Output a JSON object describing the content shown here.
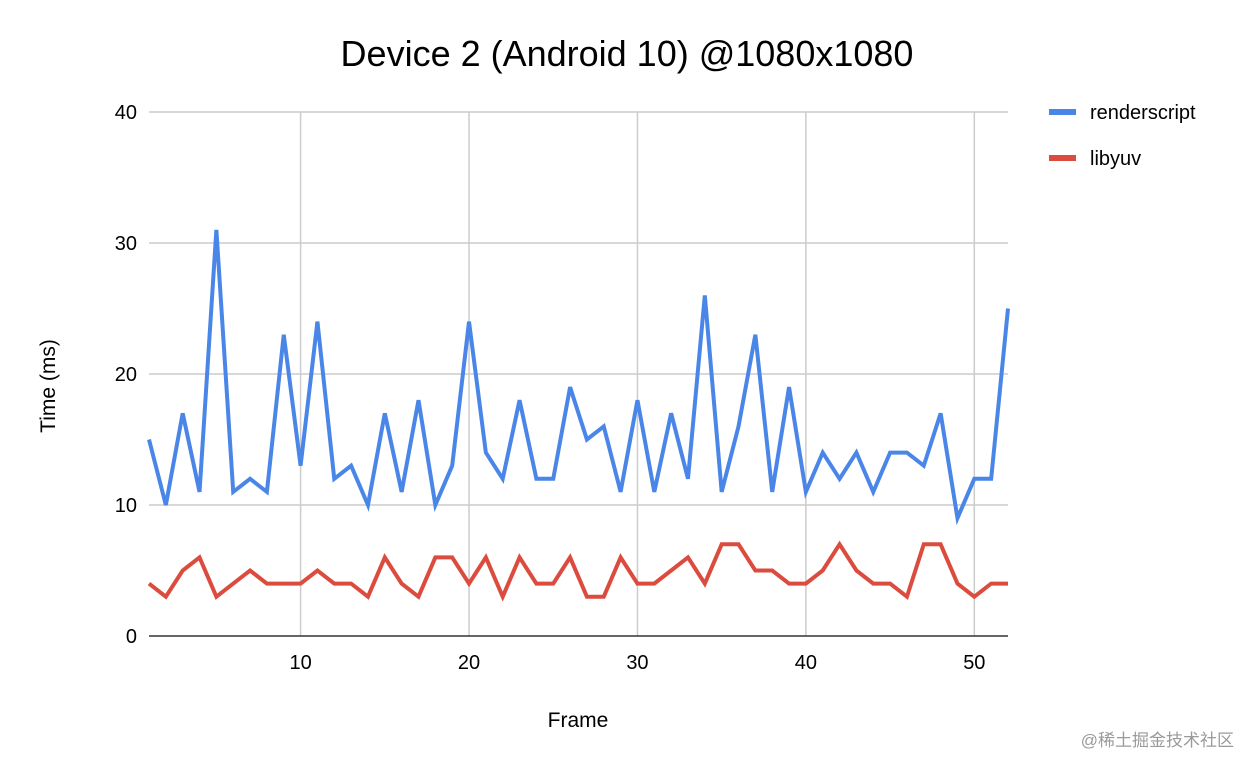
{
  "chart_data": {
    "type": "line",
    "title": "Device 2 (Android 10) @1080x1080",
    "xlabel": "Frame",
    "ylabel": "Time (ms)",
    "xlim": [
      1,
      52
    ],
    "ylim": [
      0,
      40
    ],
    "x_ticks": [
      10,
      20,
      30,
      40,
      50
    ],
    "y_ticks": [
      0,
      10,
      20,
      30,
      40
    ],
    "grid": true,
    "legend_position": "right",
    "x": [
      1,
      2,
      3,
      4,
      5,
      6,
      7,
      8,
      9,
      10,
      11,
      12,
      13,
      14,
      15,
      16,
      17,
      18,
      19,
      20,
      21,
      22,
      23,
      24,
      25,
      26,
      27,
      28,
      29,
      30,
      31,
      32,
      33,
      34,
      35,
      36,
      37,
      38,
      39,
      40,
      41,
      42,
      43,
      44,
      45,
      46,
      47,
      48,
      49,
      50,
      51,
      52
    ],
    "series": [
      {
        "name": "renderscript",
        "color": "#4a86e8",
        "values": [
          15,
          10,
          17,
          11,
          31,
          11,
          12,
          11,
          23,
          13,
          24,
          12,
          13,
          10,
          17,
          11,
          18,
          10,
          13,
          24,
          14,
          12,
          18,
          12,
          12,
          19,
          15,
          16,
          11,
          18,
          11,
          17,
          12,
          26,
          11,
          16,
          23,
          11,
          19,
          11,
          14,
          12,
          14,
          11,
          14,
          14,
          13,
          17,
          9,
          12,
          12,
          25
        ]
      },
      {
        "name": "libyuv",
        "color": "#db4c3f",
        "values": [
          4,
          3,
          5,
          6,
          3,
          4,
          5,
          4,
          4,
          4,
          5,
          4,
          4,
          3,
          6,
          4,
          3,
          6,
          6,
          4,
          6,
          3,
          6,
          4,
          4,
          6,
          3,
          3,
          6,
          4,
          4,
          5,
          6,
          4,
          7,
          7,
          5,
          5,
          4,
          4,
          5,
          7,
          5,
          4,
          4,
          3,
          7,
          7,
          4,
          3,
          4,
          4
        ]
      }
    ]
  },
  "watermark": "@稀土掘金技术社区"
}
